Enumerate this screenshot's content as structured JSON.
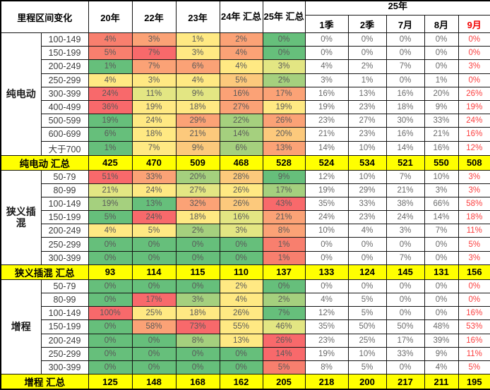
{
  "header": {
    "corner": "里程区间变化",
    "year_cols": [
      "20年",
      "22年",
      "23年"
    ],
    "total_cols": [
      "24年 汇总",
      "25年 汇总"
    ],
    "span_col": "25年",
    "month_cols": [
      "1季",
      "2季",
      "7月",
      "8月",
      "9月"
    ]
  },
  "palette": {
    "R": "#f8696b",
    "RO": "#f87f6e",
    "O": "#fba276",
    "YO": "#fcc97c",
    "Y": "#ffe983",
    "YG": "#e3e683",
    "LG": "#a5d07e",
    "G": "#66bf7b",
    "total_bg": "#ffff00",
    "header_gray": "#d8d8d8",
    "month9_red": "#fb3e3e"
  },
  "chart_data": {
    "type": "heatmap",
    "title": "里程区间变化",
    "columns": [
      "20年",
      "22年",
      "23年",
      "24年 汇总",
      "25年 汇总",
      "1季",
      "2季",
      "7月",
      "8月",
      "9月"
    ]
  },
  "sections": [
    {
      "group": "纯电动",
      "rows": [
        {
          "label": "100-149",
          "values": [
            "4%",
            "3%",
            "1%",
            "2%",
            "0%",
            "0%",
            "0%",
            "0%",
            "0%",
            "0%"
          ],
          "colors": [
            "RO",
            "O",
            "Y",
            "O",
            "G"
          ]
        },
        {
          "label": "150-199",
          "values": [
            "5%",
            "7%",
            "3%",
            "4%",
            "0%",
            "0%",
            "0%",
            "0%",
            "0%",
            "0%"
          ],
          "colors": [
            "RO",
            "R",
            "Y",
            "O",
            "G"
          ]
        },
        {
          "label": "200-249",
          "values": [
            "1%",
            "7%",
            "6%",
            "4%",
            "3%",
            "4%",
            "2%",
            "7%",
            "0%",
            "3%"
          ],
          "colors": [
            "G",
            "O",
            "O",
            "Y",
            "YG"
          ]
        },
        {
          "label": "250-299",
          "values": [
            "4%",
            "3%",
            "4%",
            "5%",
            "2%",
            "3%",
            "1%",
            "0%",
            "1%",
            "0%"
          ],
          "colors": [
            "Y",
            "Y",
            "Y",
            "YO",
            "LG"
          ]
        },
        {
          "label": "300-399",
          "values": [
            "24%",
            "11%",
            "9%",
            "16%",
            "17%",
            "16%",
            "13%",
            "16%",
            "20%",
            "26%"
          ],
          "colors": [
            "R",
            "YG",
            "YG",
            "O",
            "O"
          ]
        },
        {
          "label": "400-499",
          "values": [
            "36%",
            "19%",
            "18%",
            "27%",
            "19%",
            "19%",
            "23%",
            "18%",
            "9%",
            "19%"
          ],
          "colors": [
            "R",
            "Y",
            "Y",
            "O",
            "Y"
          ]
        },
        {
          "label": "500-599",
          "values": [
            "19%",
            "24%",
            "29%",
            "22%",
            "26%",
            "23%",
            "27%",
            "30%",
            "33%",
            "24%"
          ],
          "colors": [
            "G",
            "Y",
            "O",
            "LG",
            "O"
          ]
        },
        {
          "label": "600-699",
          "values": [
            "6%",
            "18%",
            "21%",
            "14%",
            "20%",
            "21%",
            "23%",
            "16%",
            "21%",
            "16%"
          ],
          "colors": [
            "G",
            "Y",
            "YO",
            "LG",
            "YO"
          ]
        },
        {
          "label": "大于700",
          "values": [
            "1%",
            "7%",
            "9%",
            "6%",
            "13%",
            "14%",
            "10%",
            "14%",
            "16%",
            "12%"
          ],
          "colors": [
            "G",
            "Y",
            "YO",
            "LG",
            "O"
          ]
        }
      ],
      "total": {
        "label": "纯电动 汇总",
        "values": [
          "425",
          "470",
          "509",
          "468",
          "528",
          "524",
          "534",
          "521",
          "550",
          "508"
        ]
      }
    },
    {
      "group": "狭义插混",
      "rows": [
        {
          "label": "50-79",
          "values": [
            "51%",
            "33%",
            "20%",
            "28%",
            "9%",
            "12%",
            "10%",
            "7%",
            "10%",
            "3%"
          ],
          "colors": [
            "R",
            "O",
            "LG",
            "YO",
            "G"
          ]
        },
        {
          "label": "80-99",
          "values": [
            "21%",
            "24%",
            "27%",
            "26%",
            "17%",
            "19%",
            "29%",
            "21%",
            "3%",
            "3%"
          ],
          "colors": [
            "YG",
            "Y",
            "YG",
            "Y",
            "LG"
          ]
        },
        {
          "label": "100-149",
          "values": [
            "19%",
            "13%",
            "32%",
            "26%",
            "43%",
            "35%",
            "33%",
            "38%",
            "66%",
            "58%"
          ],
          "colors": [
            "LG",
            "G",
            "O",
            "YO",
            "R"
          ]
        },
        {
          "label": "150-199",
          "values": [
            "5%",
            "24%",
            "18%",
            "16%",
            "21%",
            "24%",
            "23%",
            "24%",
            "14%",
            "18%"
          ],
          "colors": [
            "G",
            "R",
            "Y",
            "YG",
            "O"
          ]
        },
        {
          "label": "200-249",
          "values": [
            "4%",
            "5%",
            "2%",
            "3%",
            "8%",
            "10%",
            "4%",
            "3%",
            "7%",
            "11%"
          ],
          "colors": [
            "Y",
            "Y",
            "LG",
            "YG",
            "O"
          ]
        },
        {
          "label": "250-299",
          "values": [
            "0%",
            "0%",
            "0%",
            "0%",
            "1%",
            "0%",
            "0%",
            "0%",
            "0%",
            "5%"
          ],
          "colors": [
            "G",
            "G",
            "G",
            "G",
            "RO"
          ]
        },
        {
          "label": "300-399",
          "values": [
            "0%",
            "0%",
            "0%",
            "0%",
            "1%",
            "0%",
            "0%",
            "7%",
            "0%",
            "3%"
          ],
          "colors": [
            "G",
            "G",
            "G",
            "G",
            "RO"
          ]
        }
      ],
      "total": {
        "label": "狭义插混 汇总",
        "values": [
          "93",
          "114",
          "115",
          "110",
          "137",
          "133",
          "124",
          "145",
          "131",
          "156"
        ]
      }
    },
    {
      "group": "增程",
      "rows": [
        {
          "label": "50-79",
          "values": [
            "0%",
            "0%",
            "0%",
            "2%",
            "0%",
            "0%",
            "0%",
            "0%",
            "0%",
            "0%"
          ],
          "colors": [
            "G",
            "G",
            "G",
            "Y",
            "G"
          ]
        },
        {
          "label": "80-99",
          "values": [
            "0%",
            "17%",
            "3%",
            "4%",
            "2%",
            "4%",
            "5%",
            "0%",
            "0%",
            "0%"
          ],
          "colors": [
            "G",
            "R",
            "LG",
            "Y",
            "LG"
          ]
        },
        {
          "label": "100-149",
          "values": [
            "100%",
            "25%",
            "18%",
            "26%",
            "7%",
            "12%",
            "5%",
            "0%",
            "0%",
            "16%"
          ],
          "colors": [
            "R",
            "Y",
            "Y",
            "Y",
            "G"
          ]
        },
        {
          "label": "150-199",
          "values": [
            "0%",
            "58%",
            "73%",
            "55%",
            "46%",
            "35%",
            "50%",
            "50%",
            "48%",
            "53%"
          ],
          "colors": [
            "G",
            "O",
            "R",
            "Y",
            "YG"
          ]
        },
        {
          "label": "200-249",
          "values": [
            "0%",
            "0%",
            "8%",
            "13%",
            "26%",
            "23%",
            "25%",
            "17%",
            "39%",
            "16%"
          ],
          "colors": [
            "G",
            "G",
            "LG",
            "Y",
            "R"
          ]
        },
        {
          "label": "250-299",
          "values": [
            "0%",
            "0%",
            "0%",
            "0%",
            "14%",
            "19%",
            "10%",
            "33%",
            "9%",
            "11%"
          ],
          "colors": [
            "G",
            "G",
            "G",
            "G",
            "R"
          ]
        },
        {
          "label": "300-399",
          "values": [
            "0%",
            "0%",
            "0%",
            "0%",
            "5%",
            "8%",
            "5%",
            "0%",
            "4%",
            "5%"
          ],
          "colors": [
            "G",
            "G",
            "G",
            "G",
            "RO"
          ]
        }
      ],
      "total": {
        "label": "增程 汇总",
        "values": [
          "125",
          "148",
          "168",
          "162",
          "205",
          "218",
          "200",
          "217",
          "211",
          "195"
        ]
      }
    }
  ]
}
